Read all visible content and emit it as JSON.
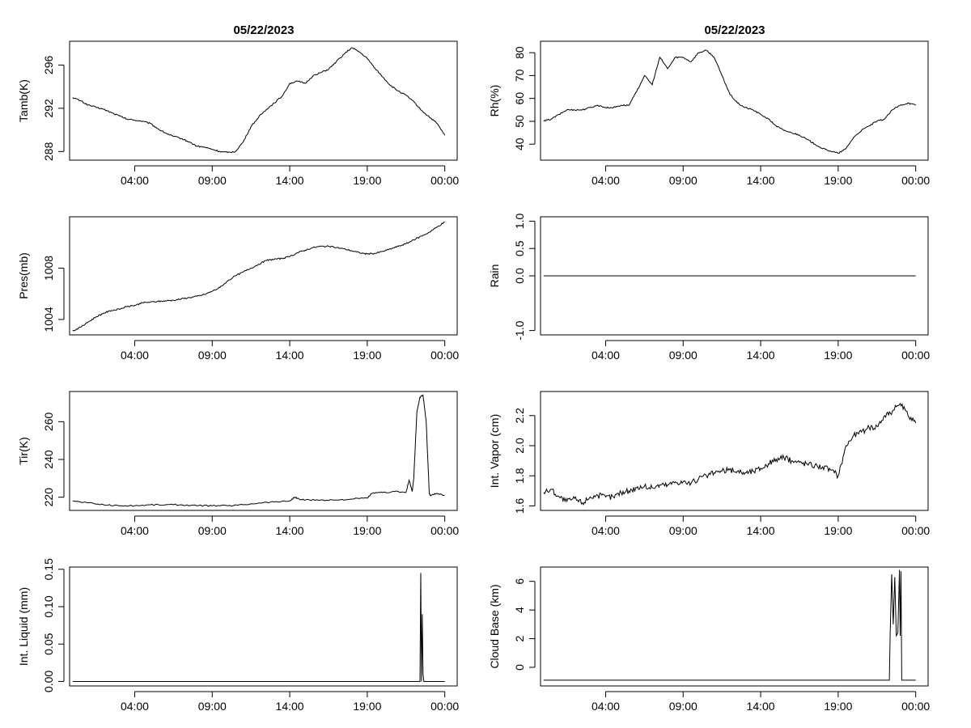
{
  "figure": {
    "left_title": "05/22/2023",
    "right_title": "05/22/2023"
  },
  "chart_data": [
    {
      "type": "line",
      "title": "05/22/2023",
      "ylabel": "Tamb(K)",
      "xlabel": "",
      "x_ticks": [
        "04:00",
        "09:00",
        "14:00",
        "19:00",
        "00:00"
      ],
      "x_tick_hours": [
        4,
        9,
        14,
        19,
        24
      ],
      "xlim": [
        -0.2,
        24.8
      ],
      "ylim": [
        287.2,
        298.2
      ],
      "y_ticks": [
        288,
        292,
        296
      ],
      "series": [
        {
          "x": [
            0,
            0.5,
            1,
            1.5,
            2,
            2.5,
            3,
            3.5,
            4,
            4.5,
            5,
            5.5,
            6,
            6.5,
            7,
            7.5,
            8,
            8.5,
            9,
            9.5,
            10,
            10.5,
            11,
            11.5,
            12,
            12.5,
            13,
            13.5,
            14,
            14.5,
            15,
            15.5,
            16,
            16.5,
            17,
            17.5,
            18,
            18.5,
            19,
            19.5,
            20,
            20.5,
            21,
            21.5,
            22,
            22.5,
            23,
            23.5,
            24
          ],
          "y": [
            293.0,
            292.7,
            292.3,
            292.1,
            291.9,
            291.6,
            291.3,
            291.0,
            290.9,
            290.8,
            290.6,
            290.1,
            289.7,
            289.4,
            289.2,
            288.9,
            288.5,
            288.4,
            288.2,
            288.0,
            287.9,
            288.0,
            288.9,
            290.3,
            291.2,
            291.9,
            292.5,
            293.1,
            294.3,
            294.5,
            294.3,
            295.0,
            295.3,
            295.6,
            296.3,
            297.0,
            297.6,
            297.2,
            296.6,
            295.7,
            294.9,
            294.1,
            293.6,
            293.2,
            292.6,
            291.8,
            291.2,
            290.6,
            289.5
          ]
        }
      ]
    },
    {
      "type": "line",
      "title": "05/22/2023",
      "ylabel": "Rh(%)",
      "xlabel": "",
      "x_ticks": [
        "04:00",
        "09:00",
        "14:00",
        "19:00",
        "00:00"
      ],
      "x_tick_hours": [
        4,
        9,
        14,
        19,
        24
      ],
      "xlim": [
        -0.2,
        24.8
      ],
      "ylim": [
        33,
        85
      ],
      "y_ticks": [
        40,
        50,
        60,
        70,
        80
      ],
      "series": [
        {
          "x": [
            0,
            0.5,
            1,
            1.5,
            2,
            2.5,
            3,
            3.5,
            4,
            4.5,
            5,
            5.5,
            6,
            6.5,
            7,
            7.5,
            8,
            8.5,
            9,
            9.5,
            10,
            10.5,
            11,
            11.5,
            12,
            12.5,
            13,
            13.5,
            14,
            14.5,
            15,
            15.5,
            16,
            16.5,
            17,
            17.5,
            18,
            18.5,
            19,
            19.5,
            20,
            20.5,
            21,
            21.5,
            22,
            22.5,
            23,
            23.5,
            24
          ],
          "y": [
            50,
            51,
            53,
            55,
            55,
            55,
            56,
            57,
            56,
            56,
            57,
            57,
            63,
            70,
            66,
            78,
            73,
            78,
            78,
            76,
            80,
            81,
            78,
            70,
            62,
            58,
            56,
            55,
            53,
            51,
            48,
            46,
            45,
            44,
            42,
            40,
            38,
            37,
            36,
            38,
            43,
            46,
            48,
            50,
            51,
            55,
            57,
            58,
            57
          ]
        }
      ]
    },
    {
      "type": "line",
      "title": "",
      "ylabel": "Pres(mb)",
      "xlabel": "",
      "x_ticks": [
        "04:00",
        "09:00",
        "14:00",
        "19:00",
        "00:00"
      ],
      "x_tick_hours": [
        4,
        9,
        14,
        19,
        24
      ],
      "xlim": [
        -0.2,
        24.8
      ],
      "ylim": [
        1002.8,
        1012.0
      ],
      "y_ticks": [
        1004,
        1008
      ],
      "series": [
        {
          "x": [
            0,
            0.5,
            1,
            1.5,
            2,
            2.5,
            3,
            3.5,
            4,
            4.5,
            5,
            5.5,
            6,
            6.5,
            7,
            7.5,
            8,
            8.5,
            9,
            9.5,
            10,
            10.5,
            11,
            11.5,
            12,
            12.5,
            13,
            13.5,
            14,
            14.5,
            15,
            15.5,
            16,
            16.5,
            17,
            17.5,
            18,
            18.5,
            19,
            19.5,
            20,
            20.5,
            21,
            21.5,
            22,
            22.5,
            23,
            23.5,
            24
          ],
          "y": [
            1003.1,
            1003.4,
            1003.8,
            1004.2,
            1004.5,
            1004.7,
            1004.8,
            1005.0,
            1005.1,
            1005.3,
            1005.35,
            1005.4,
            1005.45,
            1005.5,
            1005.6,
            1005.7,
            1005.8,
            1005.95,
            1006.2,
            1006.5,
            1007.0,
            1007.4,
            1007.7,
            1008.0,
            1008.3,
            1008.6,
            1008.7,
            1008.75,
            1008.9,
            1009.2,
            1009.4,
            1009.6,
            1009.7,
            1009.7,
            1009.6,
            1009.5,
            1009.35,
            1009.2,
            1009.1,
            1009.15,
            1009.3,
            1009.5,
            1009.7,
            1009.9,
            1010.2,
            1010.5,
            1010.8,
            1011.2,
            1011.6
          ]
        }
      ]
    },
    {
      "type": "line",
      "title": "",
      "ylabel": "Rain",
      "xlabel": "",
      "x_ticks": [
        "04:00",
        "09:00",
        "14:00",
        "19:00",
        "00:00"
      ],
      "x_tick_hours": [
        4,
        9,
        14,
        19,
        24
      ],
      "xlim": [
        -0.2,
        24.8
      ],
      "ylim": [
        -1.08,
        1.08
      ],
      "y_ticks": [
        -1.0,
        0.0,
        0.5,
        1.0
      ],
      "y_tick_labels": [
        "-1.0",
        "0.0",
        "0.5",
        "1.0"
      ],
      "series": [
        {
          "x": [
            0,
            24
          ],
          "y": [
            0,
            0
          ]
        }
      ]
    },
    {
      "type": "line",
      "title": "",
      "ylabel": "Tir(K)",
      "xlabel": "",
      "x_ticks": [
        "04:00",
        "09:00",
        "14:00",
        "19:00",
        "00:00"
      ],
      "x_tick_hours": [
        4,
        9,
        14,
        19,
        24
      ],
      "xlim": [
        -0.2,
        24.8
      ],
      "ylim": [
        213,
        276
      ],
      "y_ticks": [
        220,
        240,
        260
      ],
      "series": [
        {
          "x": [
            0,
            1,
            2,
            3,
            4,
            5,
            6,
            7,
            8,
            9,
            10,
            11,
            12,
            13,
            14,
            14.3,
            14.6,
            15,
            16,
            17,
            18,
            19,
            19.3,
            20,
            21,
            21.5,
            21.7,
            21.9,
            22.0,
            22.2,
            22.4,
            22.6,
            22.8,
            23.0,
            23.1,
            23.5,
            24
          ],
          "y": [
            218,
            217,
            216,
            215.5,
            215.5,
            216,
            216,
            216,
            215.5,
            215.5,
            215.5,
            216,
            217,
            217.5,
            218,
            220,
            219,
            218.5,
            218.5,
            218.5,
            219,
            219.5,
            222,
            222.5,
            223,
            222.5,
            229,
            223,
            230,
            265,
            273,
            274,
            260,
            222,
            221,
            222,
            221
          ]
        }
      ]
    },
    {
      "type": "line",
      "title": "",
      "ylabel": "Int. Vapor (cm)",
      "xlabel": "",
      "x_ticks": [
        "04:00",
        "09:00",
        "14:00",
        "19:00",
        "00:00"
      ],
      "x_tick_hours": [
        4,
        9,
        14,
        19,
        24
      ],
      "xlim": [
        -0.2,
        24.8
      ],
      "ylim": [
        1.57,
        2.36
      ],
      "y_ticks": [
        1.6,
        1.8,
        2.0,
        2.2
      ],
      "y_tick_labels": [
        "1.6",
        "1.8",
        "2.0",
        "2.2"
      ],
      "series": [
        {
          "x": [
            0,
            0.5,
            1,
            1.5,
            2,
            2.5,
            3,
            3.5,
            4,
            4.5,
            5,
            5.5,
            6,
            6.5,
            7,
            7.5,
            8,
            8.5,
            9,
            9.5,
            10,
            10.5,
            11,
            11.5,
            12,
            12.5,
            13,
            13.5,
            14,
            14.5,
            15,
            15.5,
            16,
            16.5,
            17,
            17.5,
            18,
            18.5,
            19,
            19.5,
            20,
            20.5,
            21,
            21.5,
            22,
            22.5,
            23,
            23.5,
            24
          ],
          "y": [
            1.69,
            1.71,
            1.66,
            1.63,
            1.65,
            1.62,
            1.66,
            1.67,
            1.66,
            1.66,
            1.69,
            1.7,
            1.72,
            1.73,
            1.72,
            1.74,
            1.74,
            1.76,
            1.76,
            1.75,
            1.78,
            1.8,
            1.82,
            1.83,
            1.84,
            1.83,
            1.82,
            1.83,
            1.85,
            1.88,
            1.91,
            1.92,
            1.9,
            1.89,
            1.88,
            1.87,
            1.86,
            1.84,
            1.8,
            2.0,
            2.07,
            2.09,
            2.12,
            2.13,
            2.2,
            2.23,
            2.28,
            2.2,
            2.15
          ]
        }
      ]
    },
    {
      "type": "line",
      "title": "",
      "ylabel": "Int. Liquid (mm)",
      "xlabel": "",
      "x_ticks": [
        "04:00",
        "09:00",
        "14:00",
        "19:00",
        "00:00"
      ],
      "x_tick_hours": [
        4,
        9,
        14,
        19,
        24
      ],
      "xlim": [
        -0.2,
        24.8
      ],
      "ylim": [
        -0.006,
        0.153
      ],
      "y_ticks": [
        0.0,
        0.05,
        0.1,
        0.15
      ],
      "y_tick_labels": [
        "0.00",
        "0.05",
        "0.10",
        "0.15"
      ],
      "series": [
        {
          "x": [
            0,
            22.4,
            22.45,
            22.5,
            22.55,
            22.6,
            22.65,
            22.7,
            24
          ],
          "y": [
            0,
            0,
            0.145,
            0,
            0.09,
            0.01,
            0,
            0,
            0
          ]
        }
      ]
    },
    {
      "type": "line",
      "title": "",
      "ylabel": "Cloud Base (km)",
      "xlabel": "",
      "x_ticks": [
        "04:00",
        "09:00",
        "14:00",
        "19:00",
        "00:00"
      ],
      "x_tick_hours": [
        4,
        9,
        14,
        19,
        24
      ],
      "xlim": [
        -0.2,
        24.8
      ],
      "ylim": [
        -1.3,
        7.0
      ],
      "y_ticks": [
        0,
        2,
        4,
        6
      ],
      "series": [
        {
          "x": [
            0,
            22.3,
            22.35,
            22.45,
            22.55,
            22.65,
            22.75,
            22.85,
            22.95,
            23.0,
            23.05,
            23.1,
            23.15,
            23.25,
            24
          ],
          "y": [
            -0.9,
            -0.9,
            2.3,
            6.5,
            3.0,
            6.3,
            2.2,
            2.4,
            6.8,
            2.2,
            6.7,
            -0.9,
            -0.9,
            -0.9,
            -0.9
          ]
        }
      ]
    }
  ]
}
